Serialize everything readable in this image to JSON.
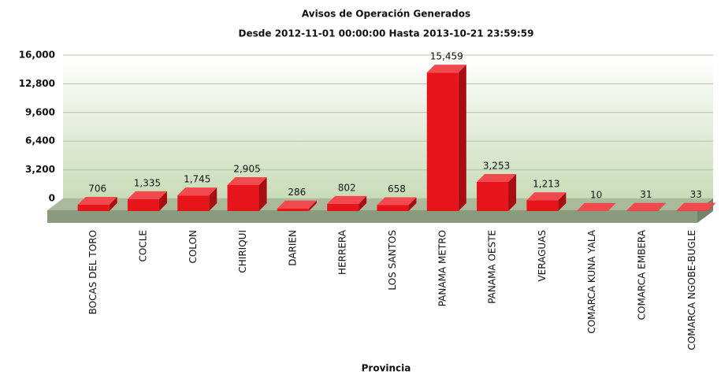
{
  "chart_data": {
    "type": "bar3d",
    "title": "Avisos de Operación Generados",
    "subtitle": "Desde  2012-11-01 00:00:00 Hasta  2013-10-21 23:59:59",
    "x_label": "Provincia",
    "categories": [
      "BOCAS DEL TORO",
      "COCLE",
      "COLON",
      "CHIRIQUI",
      "DARIEN",
      "HERRERA",
      "LOS SANTOS",
      "PANAMA METRO",
      "PANAMA OESTE",
      "VERAGUAS",
      "COMARCA KUNA YALA",
      "COMARCA EMBERA",
      "COMARCA NGOBE-BUGLE"
    ],
    "values": [
      706,
      1335,
      1745,
      2905,
      286,
      802,
      658,
      15459,
      3253,
      1213,
      10,
      31,
      33
    ],
    "value_labels": [
      "706",
      "1,335",
      "1,745",
      "2,905",
      "286",
      "802",
      "658",
      "15,459",
      "3,253",
      "1,213",
      "10",
      "31",
      "33"
    ],
    "color": "#e8141b",
    "ylim": [
      0,
      16000
    ],
    "yticks": [
      0,
      {
        "value": 3200,
        "label": "3,200"
      },
      {
        "value": 6400,
        "label": "6,400"
      },
      {
        "value": 9600,
        "label": "9,600"
      },
      {
        "value": 12800,
        "label": "12,800"
      },
      {
        "value": 16000,
        "label": "16,000"
      }
    ],
    "grid": true
  }
}
